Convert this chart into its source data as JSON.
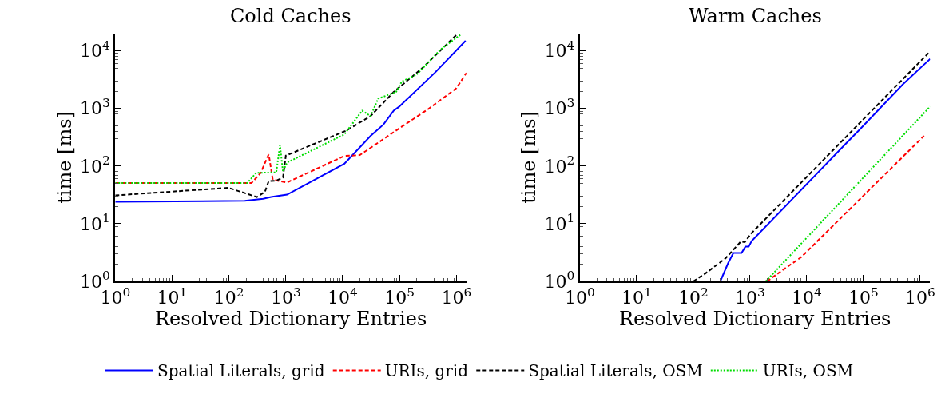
{
  "chart_data": [
    {
      "type": "line",
      "title": "Cold Caches",
      "xlabel": "Resolved Dictionary Entries",
      "ylabel": "time [ms]",
      "log": "xy",
      "legend": "bottom",
      "xlim": [
        1,
        1500000
      ],
      "ylim": [
        1,
        20000
      ],
      "xticks": [
        {
          "value": 1,
          "label": "10$^{0}$"
        },
        {
          "value": 10,
          "label": "10$^{1}$"
        },
        {
          "value": 100,
          "label": "10$^{2}$"
        },
        {
          "value": 1000,
          "label": "10$^{3}$"
        },
        {
          "value": 10000,
          "label": "10$^{4}$"
        },
        {
          "value": 100000,
          "label": "10$^{5}$"
        },
        {
          "value": 1000000,
          "label": "10$^{6}$"
        }
      ],
      "yticks": [
        {
          "value": 1,
          "label": "10$^{0}$"
        },
        {
          "value": 10,
          "label": "10$^{1}$"
        },
        {
          "value": 100,
          "label": "10$^{2}$"
        },
        {
          "value": 1000,
          "label": "10$^{3}$"
        },
        {
          "value": 10000,
          "label": "10$^{4}$"
        }
      ],
      "series": [
        {
          "name": "Spatial Literals, grid",
          "color": "#0000ff",
          "line_style": "solid",
          "x": [
            1,
            190,
            400,
            550,
            1050,
            10700,
            31000,
            52000,
            79000,
            98000,
            430000,
            1450000
          ],
          "values": [
            24,
            25,
            27,
            29,
            32,
            110,
            335,
            525,
            920,
            1070,
            4300,
            15000
          ]
        },
        {
          "name": "URIs, grid",
          "color": "#ff0000",
          "line_style": "dashed",
          "x": [
            1,
            250,
            360,
            500,
            590,
            1050,
            10700,
            20000,
            87000,
            316000,
            1000000,
            1500000
          ],
          "values": [
            51,
            51,
            76,
            160,
            58,
            52,
            150,
            155,
            415,
            970,
            2250,
            4150
          ]
        },
        {
          "name": "Spatial Literals, OSM",
          "color": "#000000",
          "line_style": "dashed",
          "x": [
            1,
            98,
            310,
            430,
            500,
            680,
            890,
            1000,
            11700,
            31000,
            79000,
            250000,
            1000000
          ],
          "values": [
            31,
            42,
            29,
            36,
            55,
            56,
            63,
            152,
            415,
            740,
            1940,
            5000,
            19000
          ]
        },
        {
          "name": "URIs, OSM",
          "color": "#00dd00",
          "line_style": "dotted",
          "x": [
            1,
            210,
            300,
            680,
            790,
            890,
            1050,
            10700,
            22000,
            31000,
            42000,
            87000,
            110000,
            200000,
            520000,
            1170000
          ],
          "values": [
            51,
            51,
            76,
            78,
            230,
            80,
            115,
            355,
            915,
            740,
            1480,
            1940,
            2950,
            3870,
            10500,
            19000
          ]
        }
      ]
    },
    {
      "type": "line",
      "title": "Warm Caches",
      "xlabel": "Resolved Dictionary Entries",
      "ylabel": "time [ms]",
      "log": "xy",
      "xlim": [
        1,
        1500000
      ],
      "ylim": [
        1,
        20000
      ],
      "xticks": [
        {
          "value": 1,
          "label": "10$^{0}$"
        },
        {
          "value": 10,
          "label": "10$^{1}$"
        },
        {
          "value": 100,
          "label": "10$^{2}$"
        },
        {
          "value": 1000,
          "label": "10$^{3}$"
        },
        {
          "value": 10000,
          "label": "10$^{4}$"
        },
        {
          "value": 100000,
          "label": "10$^{5}$"
        },
        {
          "value": 1000000,
          "label": "10$^{6}$"
        }
      ],
      "yticks": [
        {
          "value": 1,
          "label": "10$^{0}$"
        },
        {
          "value": 10,
          "label": "10$^{1}$"
        },
        {
          "value": 100,
          "label": "10$^{2}$"
        },
        {
          "value": 1000,
          "label": "10$^{3}$"
        },
        {
          "value": 10000,
          "label": "10$^{4}$"
        }
      ],
      "series": [
        {
          "color": "#0000ff",
          "line_style": "solid",
          "x": [
            200,
            300,
            410,
            510,
            710,
            830,
            950,
            1070,
            49000,
            83000,
            500000,
            1050000,
            1500000
          ],
          "values": [
            1,
            1,
            2.05,
            3.1,
            3.1,
            4,
            4,
            5,
            245,
            415,
            2650,
            5250,
            7250
          ]
        },
        {
          "color": "#ff0000",
          "line_style": "dashed",
          "x": [
            2000,
            3800,
            7900,
            1170000
          ],
          "values": [
            1,
            1.58,
            2.6,
            335
          ]
        },
        {
          "color": "#000000",
          "line_style": "dashed",
          "x": [
            100,
            160,
            370,
            690,
            810,
            1070,
            1450000
          ],
          "values": [
            1,
            1.35,
            2.5,
            4.9,
            4.8,
            6.9,
            9500
          ]
        },
        {
          "color": "#00dd00",
          "line_style": "dotted",
          "x": [
            1900,
            1500000
          ],
          "values": [
            1,
            1080
          ]
        }
      ]
    }
  ]
}
